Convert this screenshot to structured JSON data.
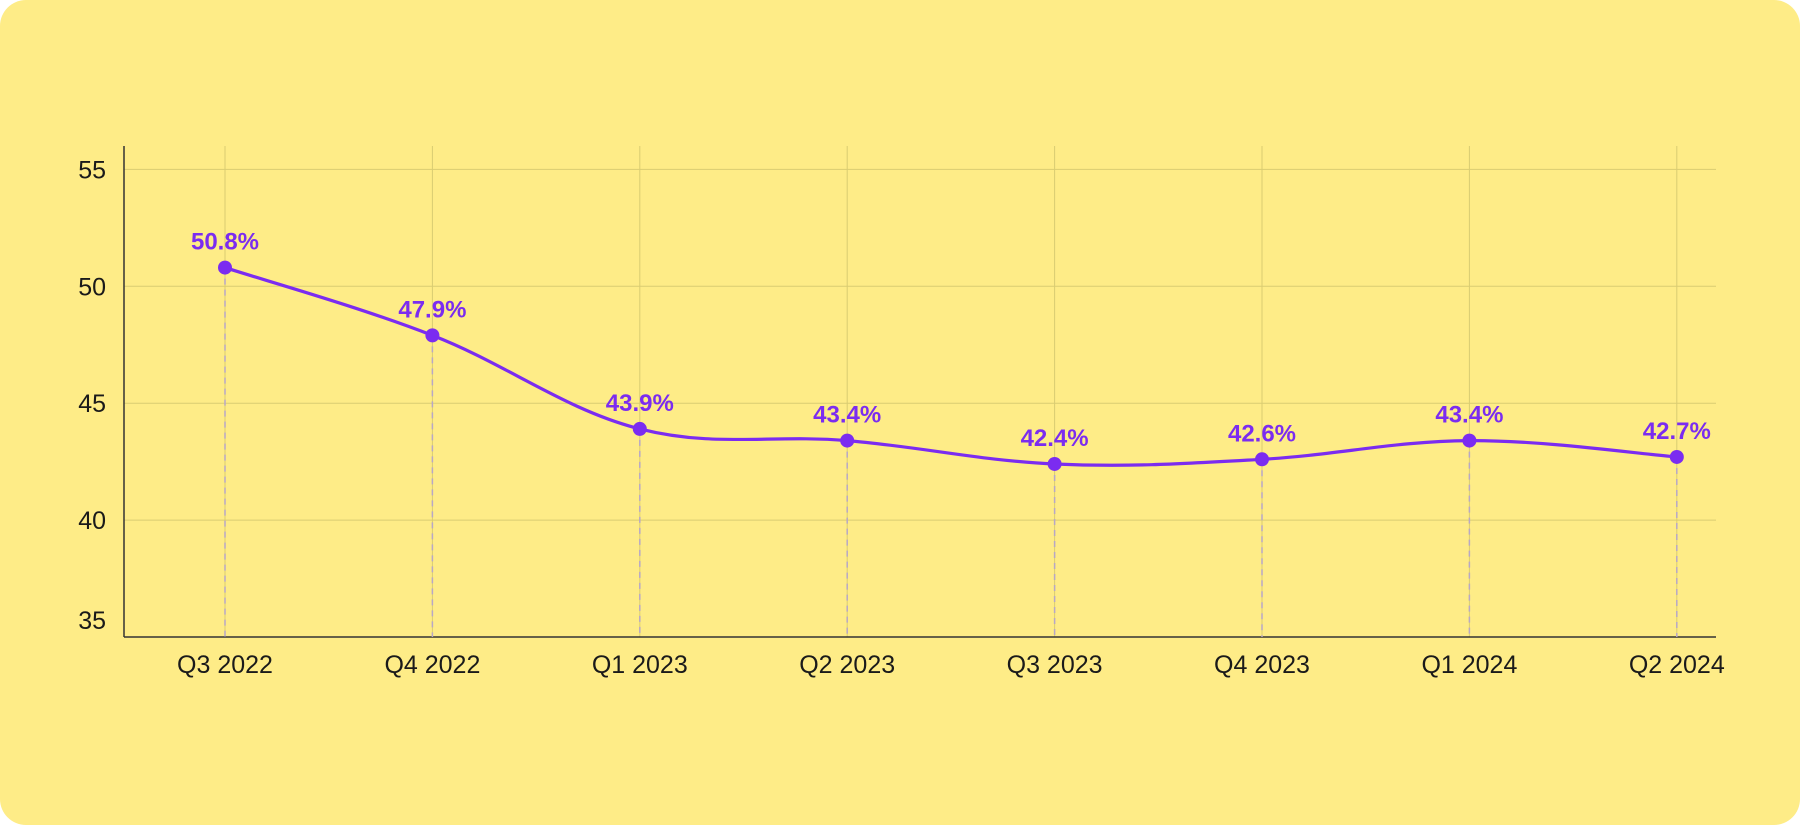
{
  "theme": {
    "background": "#feec87",
    "accent": "#7b2cf0",
    "axis": "#333333",
    "grid": "#d9cc72",
    "dropline": "#b7a7c7"
  },
  "chart_data": {
    "type": "line",
    "categories": [
      "Q3 2022",
      "Q4 2022",
      "Q1 2023",
      "Q2 2023",
      "Q3 2023",
      "Q4 2023",
      "Q1 2024",
      "Q2 2024"
    ],
    "series": [
      {
        "values": [
          50.8,
          47.9,
          43.9,
          43.4,
          42.4,
          42.6,
          43.4,
          42.7
        ],
        "labels": [
          "50.8%",
          "47.9%",
          "43.9%",
          "43.4%",
          "42.4%",
          "42.6%",
          "43.4%",
          "42.7%"
        ]
      }
    ],
    "ylim": [
      35,
      56
    ],
    "yticks": [
      35,
      40,
      45,
      50,
      55
    ],
    "smooth": true,
    "grid": true,
    "droplines": true,
    "legend": "none"
  }
}
